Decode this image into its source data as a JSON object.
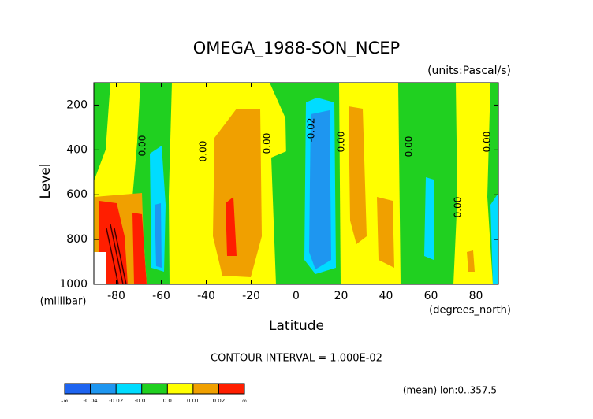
{
  "chart_data": {
    "type": "contour",
    "title": "OMEGA_1988-SON_NCEP",
    "subtitle": "(units:Pascal/s)",
    "x_label": "Latitude",
    "x_unit": "(degrees_north)",
    "y_label": "Level",
    "y_unit": "(millibar)",
    "xlim": [
      -90,
      90
    ],
    "xticks": [
      -80,
      -60,
      -40,
      -20,
      0,
      20,
      40,
      60,
      80
    ],
    "ylim": [
      1000,
      100
    ],
    "yticks": [
      200,
      400,
      600,
      800,
      1000
    ],
    "contour_labels": [
      "0.00",
      "0.00",
      "0.00",
      "-0.02",
      "0.00",
      "0.00",
      "0.00",
      "0.00"
    ],
    "note": "CONTOUR INTERVAL = 1.000E-02",
    "mean": "(mean) lon:0..357.5",
    "colorbar": {
      "colors": [
        "#1e64f0",
        "#1e96f0",
        "#00dcff",
        "#20d020",
        "#ffff00",
        "#f0a000",
        "#ff1e00"
      ],
      "levels": [
        {
          "value": -0.04,
          "label": "-0.04"
        },
        {
          "value": -0.02,
          "label": "-0.02"
        },
        {
          "value": -0.01,
          "label": "-0.01"
        },
        {
          "value": 0,
          "label": "0.0"
        },
        {
          "value": 0.01,
          "label": "0.01"
        },
        {
          "value": 0.02,
          "label": "0.02"
        }
      ],
      "ends": [
        "-∞",
        "∞"
      ]
    }
  }
}
